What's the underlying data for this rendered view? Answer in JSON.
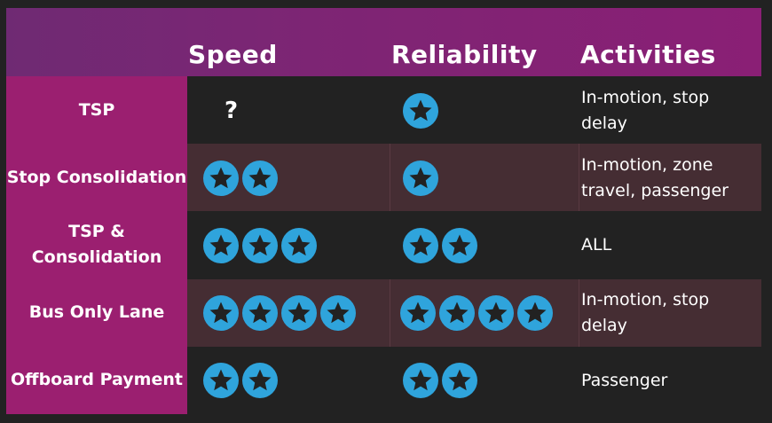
{
  "header": {
    "speed": "Speed",
    "reliability": "Reliability",
    "activities": "Activities"
  },
  "rows": [
    {
      "label": "TSP",
      "speed_stars": 0,
      "speed_text": "?",
      "reliability_stars": 1,
      "activities": "In-motion, stop\ndelay"
    },
    {
      "label": "Stop Consolidation",
      "speed_stars": 2,
      "speed_text": "",
      "reliability_stars": 1,
      "activities": "In-motion, zone\ntravel, passenger"
    },
    {
      "label": "TSP &\nConsolidation",
      "speed_stars": 3,
      "speed_text": "",
      "reliability_stars": 2,
      "activities": "ALL"
    },
    {
      "label": "Bus Only Lane",
      "speed_stars": 4,
      "speed_text": "",
      "reliability_stars": 4,
      "activities": "In-motion, stop\ndelay"
    },
    {
      "label": "Offboard Payment",
      "speed_stars": 2,
      "speed_text": "",
      "reliability_stars": 2,
      "activities": "Passenger"
    }
  ],
  "colors": {
    "header_start": "#6f2a73",
    "label_column": "#9b1f70",
    "star_circle": "#2fa4dc",
    "star": "#222222"
  },
  "icons": {
    "rating": "star-icon"
  }
}
